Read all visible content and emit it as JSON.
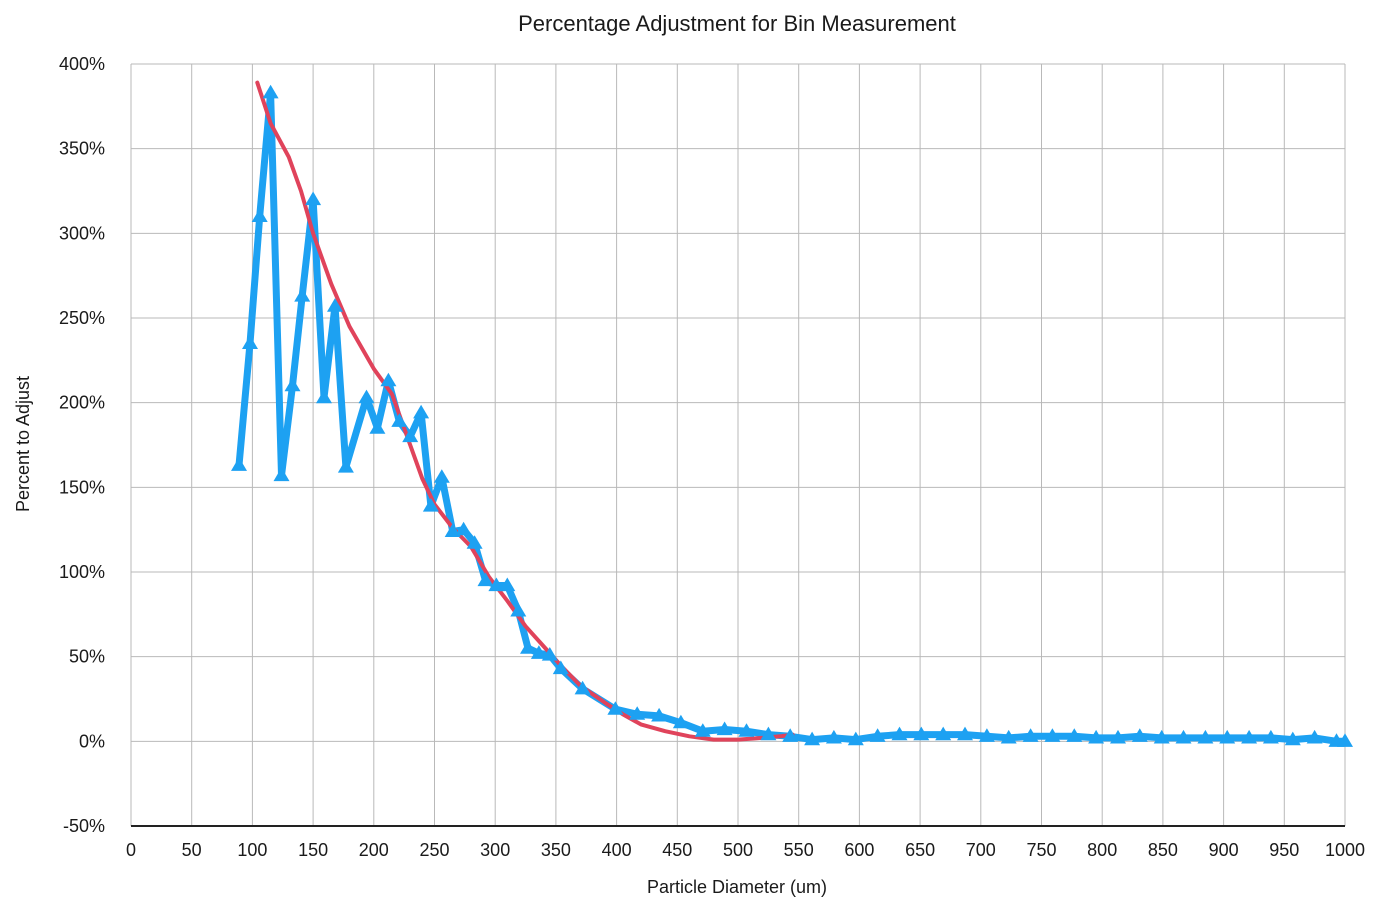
{
  "chart_data": {
    "type": "line",
    "title": "Percentage Adjustment for Bin Measurement",
    "xlabel": "Particle Diameter (um)",
    "ylabel": "Percent to Adjust",
    "xlim": [
      0,
      1000
    ],
    "ylim": [
      -50,
      400
    ],
    "x_ticks": [
      "0",
      "50",
      "100",
      "150",
      "200",
      "250",
      "300",
      "350",
      "400",
      "450",
      "500",
      "550",
      "600",
      "650",
      "700",
      "750",
      "800",
      "850",
      "900",
      "950",
      "1000"
    ],
    "x_tick_values": [
      0,
      50,
      100,
      150,
      200,
      250,
      300,
      350,
      400,
      450,
      500,
      550,
      600,
      650,
      700,
      750,
      800,
      850,
      900,
      950,
      1000
    ],
    "y_ticks": [
      "400%",
      "350%",
      "300%",
      "250%",
      "200%",
      "150%",
      "100%",
      "50%",
      "0%",
      "-50%"
    ],
    "y_tick_values": [
      400,
      350,
      300,
      250,
      200,
      150,
      100,
      50,
      0,
      -50
    ],
    "grid": true,
    "legend": "none",
    "series": [
      {
        "color": "#1da1f2",
        "marker": "triangle",
        "x": [
          89,
          98,
          106,
          115,
          124,
          133,
          141,
          150,
          159,
          168,
          177,
          194,
          203,
          212,
          221,
          230,
          239,
          247,
          256,
          265,
          274,
          283,
          292,
          301,
          310,
          319,
          327,
          336,
          345,
          354,
          372,
          399,
          417,
          435,
          453,
          471,
          489,
          507,
          525,
          543,
          561,
          579,
          597,
          615,
          633,
          651,
          669,
          687,
          705,
          723,
          741,
          759,
          777,
          795,
          813,
          831,
          849,
          867,
          885,
          903,
          921,
          939,
          957,
          975,
          993,
          1000
        ],
        "y": [
          163,
          235,
          310,
          383,
          157,
          210,
          263,
          320,
          203,
          257,
          162,
          203,
          185,
          213,
          189,
          180,
          194,
          139,
          156,
          124,
          125,
          117,
          95,
          92,
          92,
          77,
          55,
          52,
          51,
          43,
          31,
          19,
          16,
          15,
          11,
          6,
          7,
          6,
          4,
          3,
          1,
          2,
          1,
          3,
          4,
          4,
          4,
          4,
          3,
          2,
          3,
          3,
          3,
          2,
          2,
          3,
          2,
          2,
          2,
          2,
          2,
          2,
          1,
          2,
          0,
          0
        ]
      },
      {
        "color": "#e0435b",
        "marker": "none",
        "x": [
          104,
          115,
          130,
          140,
          150,
          165,
          180,
          200,
          215,
          230,
          240,
          250,
          265,
          280,
          295,
          310,
          325,
          340,
          355,
          370,
          390,
          405,
          420,
          440,
          460,
          480,
          500,
          520,
          535,
          545
        ],
        "y": [
          389,
          365,
          345,
          325,
          300,
          270,
          245,
          220,
          205,
          175,
          155,
          140,
          126,
          115,
          97,
          83,
          68,
          56,
          44,
          33,
          23,
          16,
          10,
          6,
          3,
          1,
          1,
          2,
          3,
          4
        ]
      }
    ]
  }
}
